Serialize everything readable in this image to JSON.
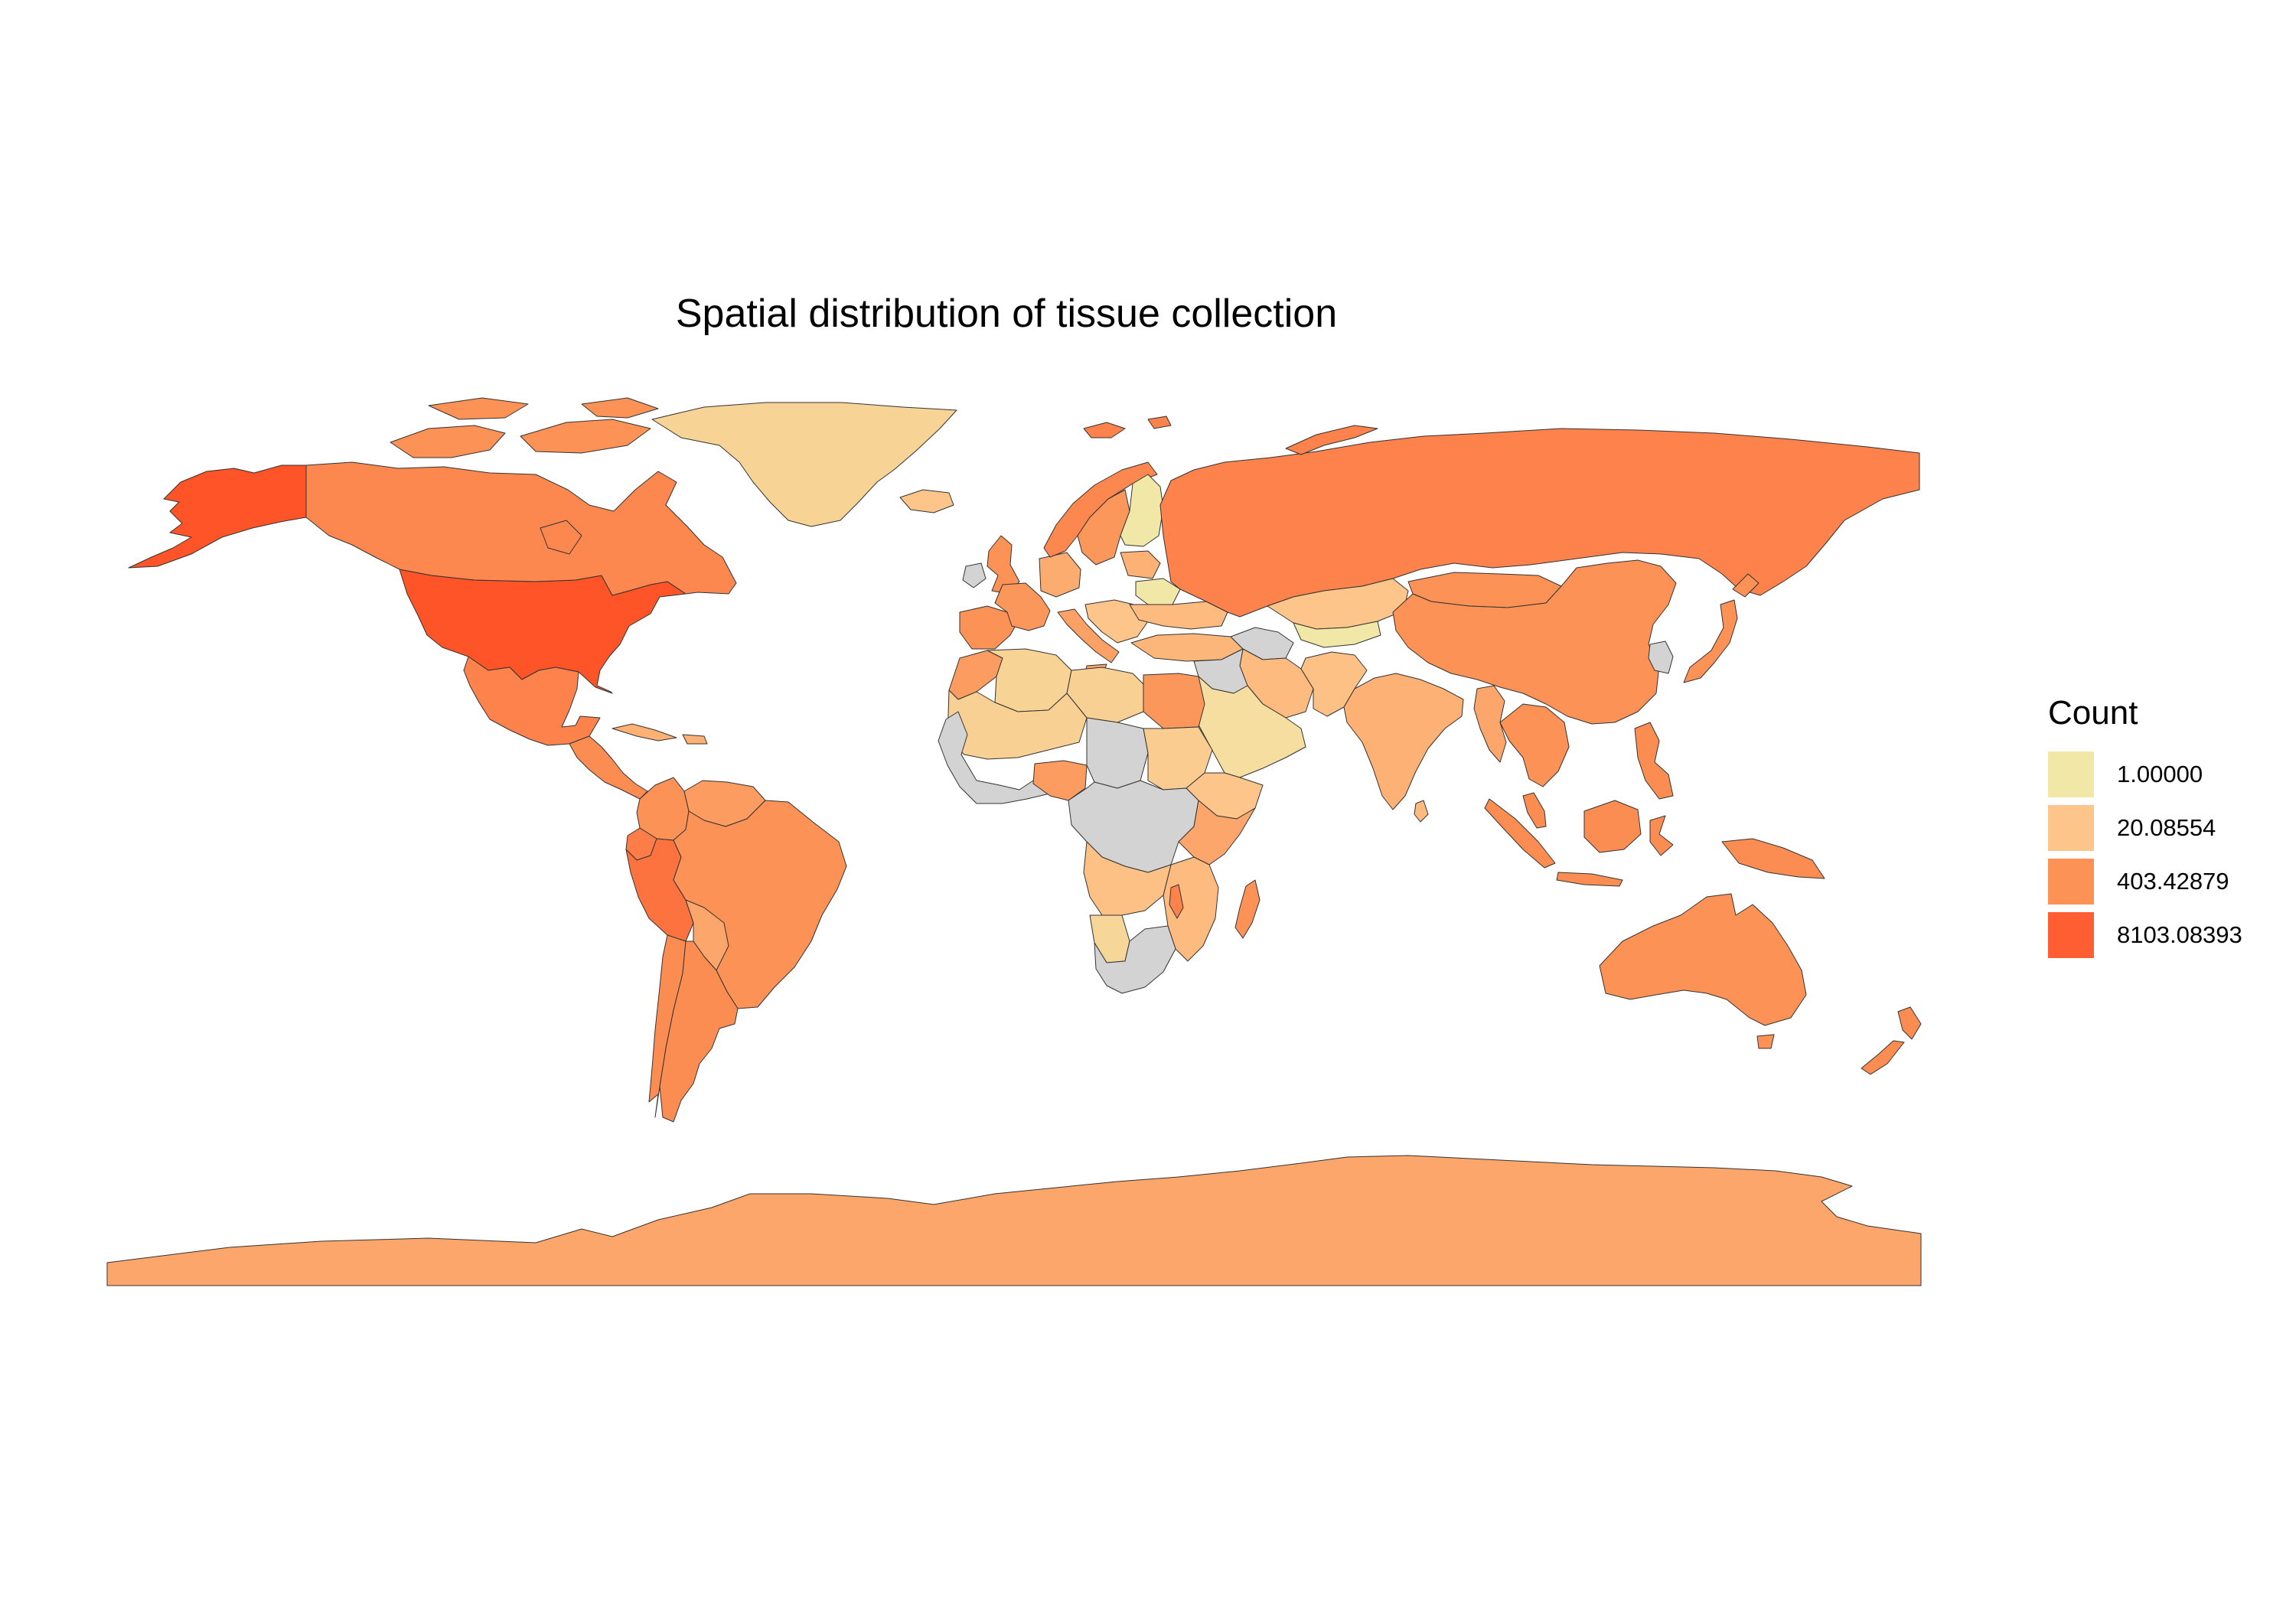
{
  "title": "Spatial distribution of tissue collection",
  "colors": {
    "no_data": "#d3d3d3",
    "border": "#333333",
    "background": "#ffffff"
  },
  "legend": {
    "title": "Count",
    "placement": "right",
    "items": [
      {
        "label": "1.00000",
        "value": 1.0,
        "color": "#f1e8a8"
      },
      {
        "label": "20.08554",
        "value": 20.08554,
        "color": "#fdc58a"
      },
      {
        "label": "403.42879",
        "value": 403.42879,
        "color": "#fc9256"
      },
      {
        "label": "8103.08393",
        "value": 8103.08393,
        "color": "#fe5e32"
      }
    ]
  },
  "regions": [
    {
      "key": "alaska",
      "name": "United States",
      "level": 4.2
    },
    {
      "key": "usa",
      "name": "United States",
      "level": 4.2
    },
    {
      "key": "canada",
      "name": "Canada",
      "level": 3.2
    },
    {
      "key": "greenland",
      "name": "Greenland",
      "level": 1.6
    },
    {
      "key": "mexico",
      "name": "Mexico",
      "level": 3.3
    },
    {
      "key": "central_america",
      "name": "Central America",
      "level": 3.1
    },
    {
      "key": "cuba",
      "name": "Cuba",
      "level": 2.4
    },
    {
      "key": "colombia",
      "name": "Colombia",
      "level": 3.0
    },
    {
      "key": "venezuela",
      "name": "Venezuela",
      "level": 2.8
    },
    {
      "key": "ecuador",
      "name": "Ecuador",
      "level": 3.4
    },
    {
      "key": "peru",
      "name": "Peru",
      "level": 3.6
    },
    {
      "key": "brazil",
      "name": "Brazil",
      "level": 3.0
    },
    {
      "key": "bolivia",
      "name": "Bolivia",
      "level": 2.6
    },
    {
      "key": "chile",
      "name": "Chile",
      "level": 3.1
    },
    {
      "key": "argentina",
      "name": "Argentina",
      "level": 3.1
    },
    {
      "key": "iceland",
      "name": "Iceland",
      "level": 2.0
    },
    {
      "key": "uk",
      "name": "United Kingdom",
      "level": 3.0
    },
    {
      "key": "ireland",
      "name": "Ireland",
      "level": 0
    },
    {
      "key": "iberia",
      "name": "Spain",
      "level": 3.0
    },
    {
      "key": "france",
      "name": "France",
      "level": 2.9
    },
    {
      "key": "germany",
      "name": "Germany",
      "level": 2.5
    },
    {
      "key": "italy",
      "name": "Italy",
      "level": 2.7
    },
    {
      "key": "balkans",
      "name": "Balkans",
      "level": 2.0
    },
    {
      "key": "norway",
      "name": "Norway",
      "level": 3.2
    },
    {
      "key": "sweden",
      "name": "Sweden",
      "level": 2.9
    },
    {
      "key": "finland",
      "name": "Finland",
      "level": 1.0
    },
    {
      "key": "baltics",
      "name": "Baltic states",
      "level": 2.4
    },
    {
      "key": "belarus",
      "name": "Belarus",
      "level": 1.0
    },
    {
      "key": "ukraine",
      "name": "Ukraine",
      "level": 2.2
    },
    {
      "key": "turkey",
      "name": "Turkey",
      "level": 2.3
    },
    {
      "key": "russia",
      "name": "Russia",
      "level": 3.3
    },
    {
      "key": "kazakhstan",
      "name": "Kazakhstan",
      "level": 2.0
    },
    {
      "key": "caspian_area",
      "name": "Caspian region",
      "level": 1.0
    },
    {
      "key": "central_asia",
      "name": "Central Asia",
      "level": 0
    },
    {
      "key": "iran",
      "name": "Iran",
      "level": 2.2
    },
    {
      "key": "iraq_syria",
      "name": "Iraq and Syria",
      "level": 0
    },
    {
      "key": "arabia",
      "name": "Saudi Arabia",
      "level": 1.3
    },
    {
      "key": "afgh_pak",
      "name": "Afghanistan and Pakistan",
      "level": 2.1
    },
    {
      "key": "mongolia",
      "name": "Mongolia",
      "level": 3.0
    },
    {
      "key": "china",
      "name": "China",
      "level": 3.0
    },
    {
      "key": "korea",
      "name": "Korea",
      "level": 0
    },
    {
      "key": "japan",
      "name": "Japan",
      "level": 3.0
    },
    {
      "key": "india",
      "name": "India",
      "level": 2.4
    },
    {
      "key": "sri_lanka",
      "name": "Sri Lanka",
      "level": 2.2
    },
    {
      "key": "myanmar",
      "name": "Myanmar",
      "level": 2.6
    },
    {
      "key": "indochina",
      "name": "Indochina",
      "level": 3.0
    },
    {
      "key": "malaysia",
      "name": "Malaysia",
      "level": 3.1
    },
    {
      "key": "sumatra",
      "name": "Indonesia",
      "level": 3.1
    },
    {
      "key": "borneo",
      "name": "Indonesia",
      "level": 3.1
    },
    {
      "key": "java",
      "name": "Indonesia",
      "level": 3.1
    },
    {
      "key": "sulawesi",
      "name": "Indonesia",
      "level": 3.1
    },
    {
      "key": "philippines",
      "name": "Philippines",
      "level": 3.1
    },
    {
      "key": "new_guinea",
      "name": "Papua New Guinea",
      "level": 3.1
    },
    {
      "key": "australia",
      "name": "Australia",
      "level": 3.0
    },
    {
      "key": "tasmania",
      "name": "Australia",
      "level": 3.0
    },
    {
      "key": "nz_north",
      "name": "New Zealand",
      "level": 3.1
    },
    {
      "key": "nz_south",
      "name": "New Zealand",
      "level": 3.1
    },
    {
      "key": "morocco",
      "name": "Morocco",
      "level": 2.8
    },
    {
      "key": "algeria",
      "name": "Algeria",
      "level": 1.6
    },
    {
      "key": "libya",
      "name": "Libya",
      "level": 1.7
    },
    {
      "key": "egypt",
      "name": "Egypt",
      "level": 2.9
    },
    {
      "key": "sahel_west",
      "name": "Mali",
      "level": 1.7
    },
    {
      "key": "west_africa_grey",
      "name": "West Africa",
      "level": 0
    },
    {
      "key": "nigeria",
      "name": "Nigeria",
      "level": 2.8
    },
    {
      "key": "chad",
      "name": "Chad",
      "level": 0
    },
    {
      "key": "sudan",
      "name": "Sudan",
      "level": 1.8
    },
    {
      "key": "ethiopia",
      "name": "Ethiopia",
      "level": 2.0
    },
    {
      "key": "central_africa",
      "name": "Central Africa",
      "level": 0
    },
    {
      "key": "east_africa",
      "name": "East Africa",
      "level": 2.6
    },
    {
      "key": "tanzania_moz",
      "name": "Tanzania and Mozambique",
      "level": 2.2
    },
    {
      "key": "angola_zambia",
      "name": "Angola and Zambia",
      "level": 2.1
    },
    {
      "key": "malawi",
      "name": "Malawi",
      "level": 3.3
    },
    {
      "key": "namibia",
      "name": "Namibia",
      "level": 1.5
    },
    {
      "key": "south_africa",
      "name": "South Africa",
      "level": 0
    },
    {
      "key": "madagascar",
      "name": "Madagascar",
      "level": 3.0
    },
    {
      "key": "svalbard",
      "name": "Svalbard",
      "level": 3.3
    },
    {
      "key": "novaya_zemlya",
      "name": "Russia",
      "level": 3.3
    },
    {
      "key": "arctic_islands",
      "name": "Canadian Arctic",
      "level": 3.0
    },
    {
      "key": "antarctica",
      "name": "Antarctica",
      "level": 2.6
    }
  ]
}
